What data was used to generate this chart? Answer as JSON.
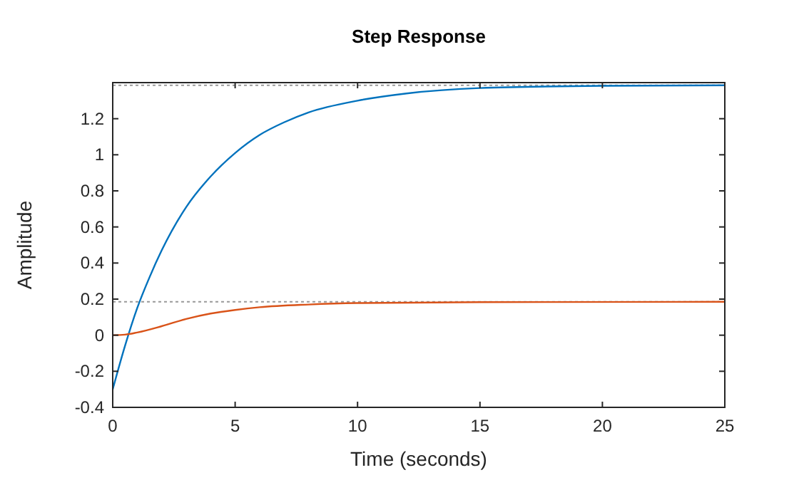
{
  "chart_data": {
    "type": "line",
    "title": "Step Response",
    "xlabel": "Time (seconds)",
    "ylabel": "Amplitude",
    "xlim": [
      0,
      25
    ],
    "xticks": [
      0,
      5,
      10,
      15,
      20,
      25
    ],
    "ylim": [
      -0.4,
      1.4
    ],
    "yticks": [
      -0.4,
      -0.2,
      0,
      0.2,
      0.4,
      0.6,
      0.8,
      1,
      1.2,
      {
        "value": 1.4,
        "label": null
      }
    ],
    "line_style": "solid",
    "marker": "none",
    "series": [
      {
        "color": "#0072bd",
        "x": [
          0,
          0.5,
          1,
          1.5,
          2,
          3,
          4,
          5,
          6,
          7,
          8,
          10,
          12,
          15,
          20,
          25
        ],
        "values": [
          -0.3,
          -0.06,
          0.15,
          0.32,
          0.47,
          0.71,
          0.88,
          1.01,
          1.11,
          1.18,
          1.235,
          1.3,
          1.34,
          1.37,
          1.382,
          1.385
        ]
      },
      {
        "color": "#d95319",
        "x": [
          0,
          0.5,
          1,
          2,
          3,
          4,
          5,
          6,
          8,
          10,
          15,
          25
        ],
        "values": [
          0,
          0.003,
          0.015,
          0.05,
          0.09,
          0.12,
          0.14,
          0.155,
          0.17,
          0.178,
          0.183,
          0.185
        ]
      }
    ],
    "ref_lines": [
      {
        "axis": "y",
        "value": 1.385,
        "color": "#999999",
        "line_style": "dotted"
      },
      {
        "axis": "y",
        "value": 0.185,
        "color": "#999999",
        "line_style": "dotted"
      }
    ]
  }
}
